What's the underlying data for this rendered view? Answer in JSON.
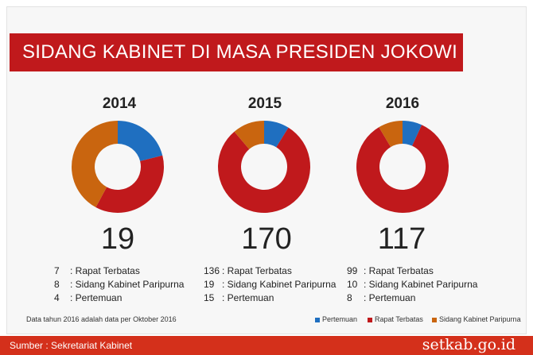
{
  "title": "SIDANG KABINET DI MASA PRESIDEN JOKOWI",
  "colors": {
    "pertemuan": "#1f6fc0",
    "rapat": "#c0191c",
    "sidang": "#c9650f"
  },
  "chart_data": [
    {
      "type": "pie",
      "year": "2014",
      "total": "19",
      "slices": [
        {
          "name": "Pertemuan",
          "value": 4
        },
        {
          "name": "Rapat Terbatas",
          "value": 7
        },
        {
          "name": "Sidang Kabinet Paripurna",
          "value": 8
        }
      ]
    },
    {
      "type": "pie",
      "year": "2015",
      "total": "170",
      "slices": [
        {
          "name": "Pertemuan",
          "value": 15
        },
        {
          "name": "Rapat Terbatas",
          "value": 136
        },
        {
          "name": "Sidang Kabinet Paripurna",
          "value": 19
        }
      ]
    },
    {
      "type": "pie",
      "year": "2016",
      "total": "117",
      "slices": [
        {
          "name": "Pertemuan",
          "value": 8
        },
        {
          "name": "Rapat Terbatas",
          "value": 99
        },
        {
          "name": "Sidang Kabinet Paripurna",
          "value": 10
        }
      ]
    }
  ],
  "stats": [
    [
      {
        "num": "7",
        "label": ": Rapat Terbatas"
      },
      {
        "num": "8",
        "label": ": Sidang Kabinet Paripurna"
      },
      {
        "num": "4",
        "label": ": Pertemuan"
      }
    ],
    [
      {
        "num": "136",
        "label": ": Rapat Terbatas"
      },
      {
        "num": "19",
        "label": ": Sidang Kabinet Paripurna"
      },
      {
        "num": "15",
        "label": ": Pertemuan"
      }
    ],
    [
      {
        "num": "99",
        "label": ": Rapat Terbatas"
      },
      {
        "num": "10",
        "label": ": Sidang Kabinet Paripurna"
      },
      {
        "num": "8",
        "label": ": Pertemuan"
      }
    ]
  ],
  "note": "Data tahun 2016 adalah data per Oktober 2016",
  "legend": [
    "Pertemuan",
    "Rapat Terbatas",
    "Sidang Kabinet Paripurna"
  ],
  "footer": {
    "source": "Sumber : Sekretariat Kabinet",
    "site": "setkab.go.id"
  }
}
